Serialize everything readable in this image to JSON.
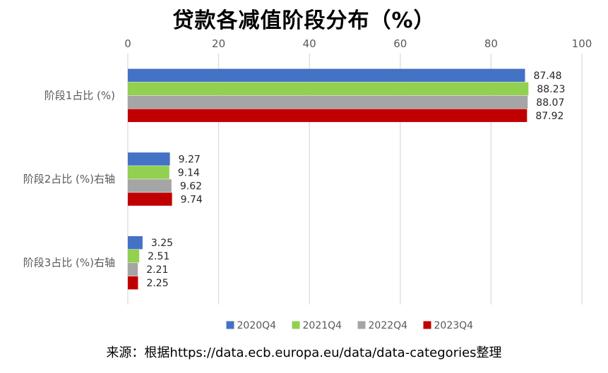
{
  "chart_data": {
    "type": "bar",
    "orientation": "horizontal",
    "title": "贷款各减值阶段分布（%）",
    "categories": [
      "阶段1占比 (%)",
      "阶段2占比 (%)右轴",
      "阶段3占比 (%)右轴"
    ],
    "series": [
      {
        "name": "2020Q4",
        "color": "#4472C4",
        "values": [
          87.48,
          9.27,
          3.25
        ]
      },
      {
        "name": "2021Q4",
        "color": "#92D050",
        "values": [
          88.23,
          9.14,
          2.51
        ]
      },
      {
        "name": "2022Q4",
        "color": "#A5A5A5",
        "values": [
          88.07,
          9.62,
          2.21
        ]
      },
      {
        "name": "2023Q4",
        "color": "#C00000",
        "values": [
          87.92,
          9.74,
          2.25
        ]
      }
    ],
    "xlim": [
      0,
      100
    ],
    "xticks": [
      0,
      20,
      40,
      60,
      80,
      100
    ],
    "x_axis_position": "top",
    "grid": true,
    "legend_position": "bottom"
  },
  "source_note": "来源：根据https://data.ecb.europa.eu/data/data-categories整理"
}
